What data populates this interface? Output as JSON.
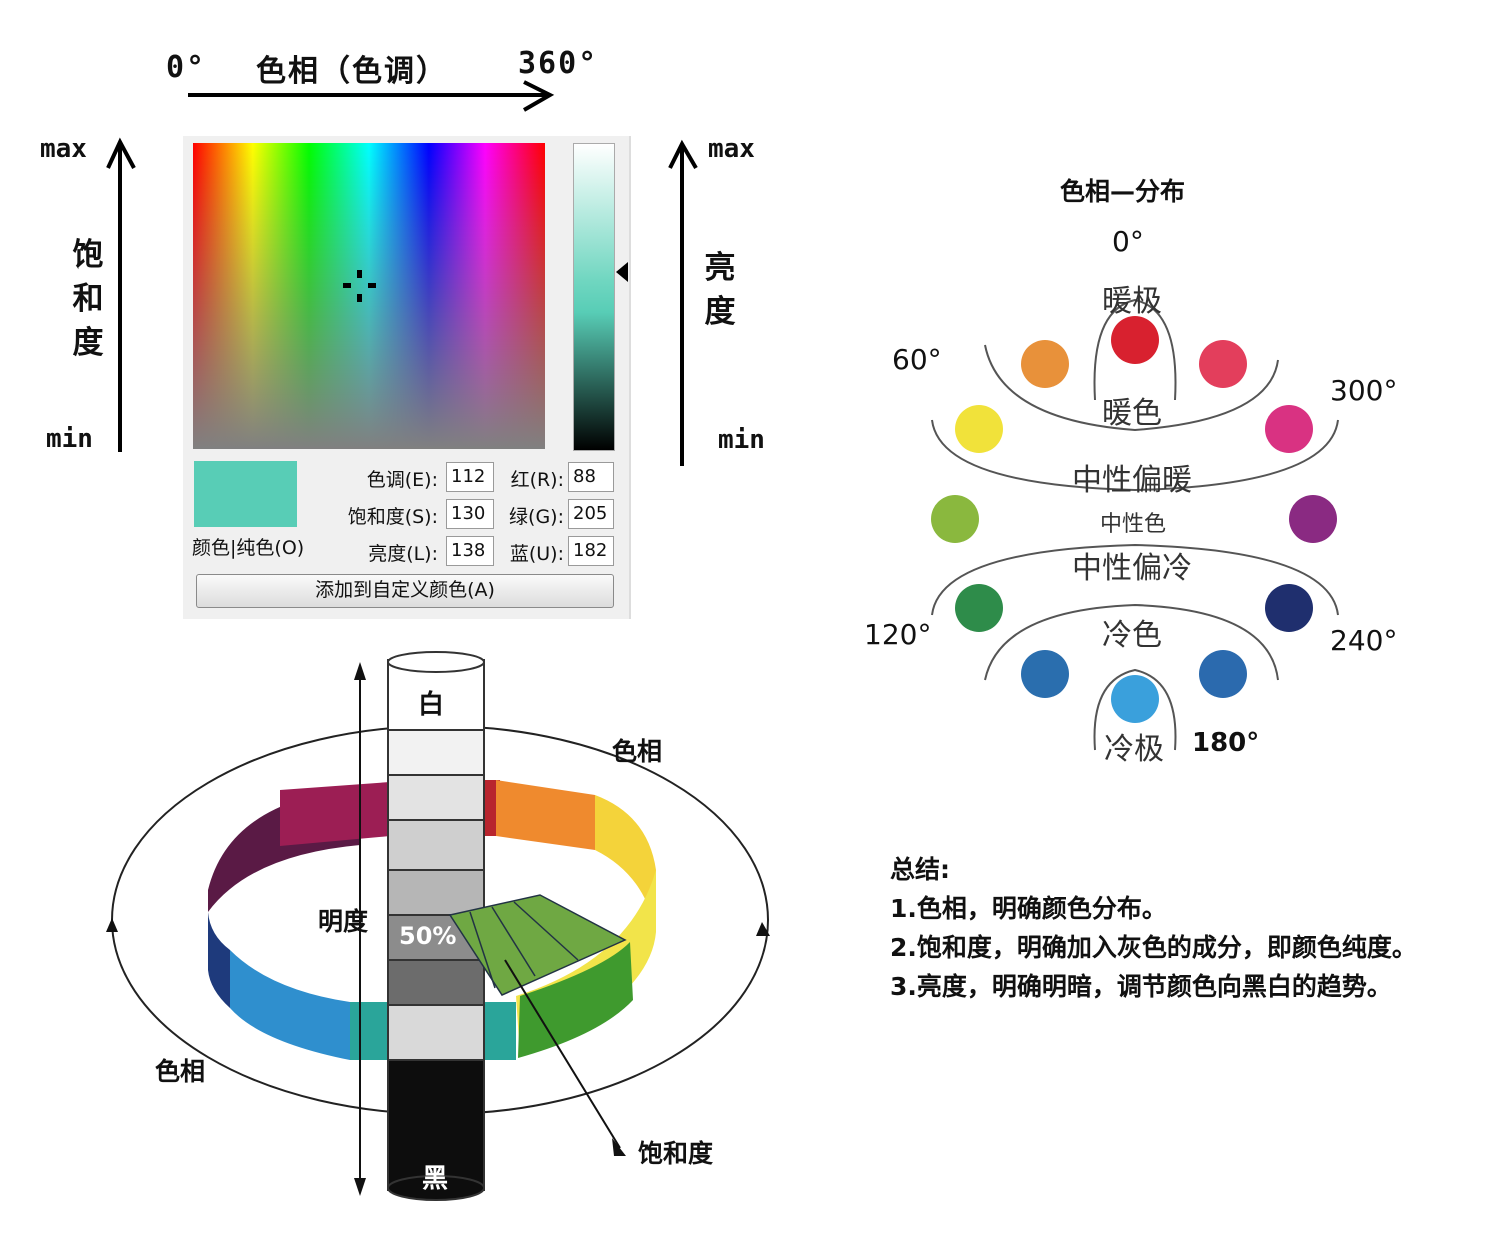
{
  "picker": {
    "hue_axis_start": "0°",
    "hue_axis_title": "色相（色调）",
    "hue_axis_end": "360°",
    "sat_max": "max",
    "sat_min": "min",
    "sat_title": "饱和度",
    "lum_max": "max",
    "lum_min": "min",
    "lum_title": "亮度",
    "swatch_color": "#58cdb6",
    "swatch_label": "颜色|纯色(O)",
    "fields": {
      "hue_label": "色调(E):",
      "hue_value": "112",
      "sat_label": "饱和度(S):",
      "sat_value": "130",
      "lum_label": "亮度(L):",
      "lum_value": "138",
      "red_label": "红(R):",
      "red_value": "88",
      "green_label": "绿(G):",
      "green_value": "205",
      "blue_label": "蓝(U):",
      "blue_value": "182"
    },
    "add_button": "添加到自定义颜色(A)"
  },
  "cylinder": {
    "white": "白",
    "black": "黑",
    "lightness": "明度",
    "hue_top": "色相",
    "hue_bottom": "色相",
    "saturation": "饱和度",
    "fifty": "50%"
  },
  "hue_wheel": {
    "title": "色相—分布",
    "deg0": "0°",
    "deg60": "60°",
    "deg300": "300°",
    "deg120": "120°",
    "deg240": "240°",
    "deg180": "180°",
    "warm_pole": "暖极",
    "warm": "暖色",
    "neutral_warm": "中性偏暖",
    "neutral": "中性色",
    "neutral_cool": "中性偏冷",
    "cool": "冷色",
    "cool_pole": "冷极",
    "dot_colors": [
      "#d8212f",
      "#e33e5c",
      "#d93282",
      "#8a2a82",
      "#1f2f6e",
      "#2b6aae",
      "#3aa0dc",
      "#2a6eae",
      "#2e8c4a",
      "#8ab83e",
      "#f1e23a",
      "#e8913a"
    ]
  },
  "summary": {
    "title": "总结:",
    "line1": "1.色相，明确颜色分布。",
    "line2": "2.饱和度，明确加入灰色的成分，即颜色纯度。",
    "line3": "3.亮度，明确明暗，调节颜色向黑白的趋势。"
  }
}
